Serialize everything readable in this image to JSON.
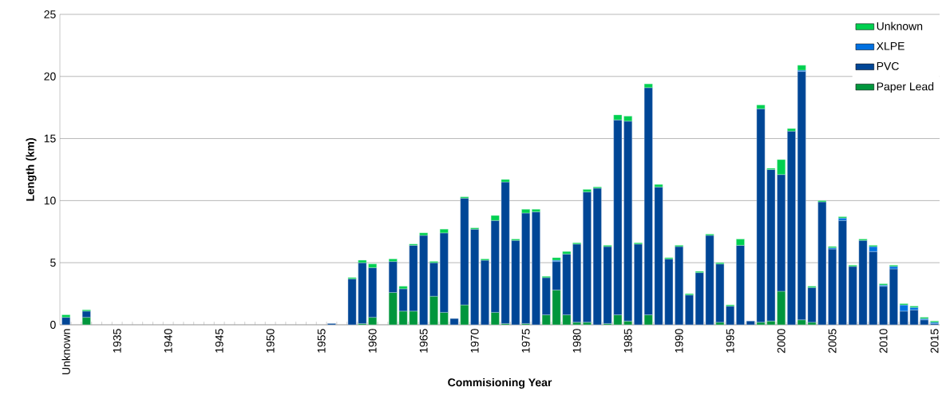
{
  "chart_data": {
    "type": "bar",
    "stacked": true,
    "xlabel": "Commisioning Year",
    "ylabel": "Length (km)",
    "categories": [
      "Unknown",
      null,
      null,
      null,
      null,
      "1935",
      null,
      null,
      null,
      null,
      "1940",
      null,
      null,
      null,
      null,
      "1945",
      null,
      null,
      null,
      null,
      "1950",
      null,
      null,
      null,
      null,
      "1955",
      null,
      null,
      null,
      null,
      "1960",
      null,
      null,
      null,
      null,
      "1965",
      null,
      null,
      null,
      null,
      "1970",
      null,
      null,
      null,
      null,
      "1975",
      null,
      null,
      null,
      null,
      "1980",
      null,
      null,
      null,
      null,
      "1985",
      null,
      null,
      null,
      null,
      "1990",
      null,
      null,
      null,
      null,
      "1995",
      null,
      null,
      null,
      null,
      "2000",
      null,
      null,
      null,
      null,
      "2005",
      null,
      null,
      null,
      null,
      "2010",
      null,
      null,
      null,
      null,
      "2015"
    ],
    "series": [
      {
        "name": "Paper Lead",
        "color": "#00963c",
        "values": [
          null,
          null,
          0.6,
          null,
          null,
          null,
          null,
          null,
          null,
          null,
          null,
          null,
          null,
          null,
          null,
          null,
          null,
          null,
          null,
          null,
          null,
          null,
          null,
          null,
          null,
          null,
          null,
          null,
          null,
          0.1,
          0.6,
          null,
          2.6,
          1.1,
          1.1,
          null,
          2.3,
          1.0,
          null,
          1.6,
          null,
          null,
          1.0,
          0.1,
          null,
          0.1,
          null,
          0.8,
          2.8,
          0.8,
          0.2,
          0.2,
          null,
          0.1,
          0.8,
          0.3,
          null,
          0.8,
          null,
          null,
          null,
          null,
          null,
          null,
          0.2,
          null,
          null,
          null,
          0.2,
          0.3,
          2.7,
          null,
          0.4,
          0.2,
          null,
          null,
          null,
          null,
          null,
          null,
          null,
          null,
          null,
          null,
          null,
          null
        ]
      },
      {
        "name": "PVC",
        "color": "#004696",
        "values": [
          0.6,
          null,
          0.5,
          null,
          null,
          null,
          null,
          null,
          null,
          null,
          null,
          null,
          null,
          null,
          null,
          null,
          null,
          null,
          null,
          null,
          null,
          null,
          null,
          null,
          null,
          null,
          0.1,
          null,
          3.7,
          4.9,
          4.0,
          null,
          2.5,
          1.8,
          5.3,
          7.2,
          2.7,
          6.4,
          0.5,
          8.6,
          7.7,
          5.2,
          7.4,
          11.4,
          6.8,
          8.9,
          9.1,
          3.0,
          2.3,
          4.9,
          6.3,
          10.5,
          11.0,
          6.2,
          15.7,
          16.1,
          6.5,
          18.3,
          11.1,
          5.3,
          6.3,
          2.4,
          4.2,
          7.2,
          4.7,
          1.5,
          6.4,
          0.3,
          17.2,
          12.2,
          9.4,
          15.6,
          20.0,
          2.8,
          9.9,
          6.1,
          8.4,
          4.7,
          6.8,
          5.9,
          3.1,
          4.5,
          1.1,
          1.2,
          0.4,
          0.1
        ]
      },
      {
        "name": "XLPE",
        "color": "#0070e0",
        "values": [
          null,
          null,
          null,
          null,
          null,
          null,
          null,
          null,
          null,
          null,
          null,
          null,
          null,
          null,
          null,
          null,
          null,
          null,
          null,
          null,
          null,
          null,
          null,
          null,
          null,
          null,
          null,
          null,
          null,
          null,
          null,
          null,
          null,
          null,
          null,
          null,
          null,
          null,
          null,
          null,
          null,
          null,
          null,
          null,
          null,
          null,
          null,
          null,
          0.1,
          null,
          null,
          null,
          null,
          null,
          null,
          null,
          null,
          null,
          null,
          null,
          null,
          null,
          null,
          null,
          null,
          null,
          null,
          null,
          null,
          null,
          null,
          null,
          0.1,
          null,
          null,
          0.1,
          0.2,
          null,
          null,
          0.4,
          0.1,
          0.2,
          0.5,
          0.2,
          0.1,
          0.1
        ]
      },
      {
        "name": "Unknown",
        "color": "#00d050",
        "values": [
          0.2,
          null,
          0.1,
          null,
          null,
          null,
          null,
          null,
          null,
          null,
          null,
          null,
          null,
          null,
          null,
          null,
          null,
          null,
          null,
          null,
          null,
          null,
          null,
          null,
          null,
          null,
          null,
          null,
          0.1,
          0.2,
          0.3,
          null,
          0.2,
          0.2,
          0.1,
          0.2,
          0.1,
          0.3,
          null,
          0.1,
          0.1,
          0.1,
          0.4,
          0.2,
          0.1,
          0.3,
          0.2,
          0.1,
          0.2,
          0.2,
          0.1,
          0.2,
          0.1,
          0.1,
          0.4,
          0.4,
          0.1,
          0.3,
          0.2,
          0.1,
          0.1,
          0.1,
          0.1,
          0.1,
          0.1,
          0.1,
          0.5,
          null,
          0.3,
          0.1,
          1.2,
          0.2,
          0.4,
          0.1,
          0.1,
          0.1,
          0.1,
          0.1,
          0.1,
          0.1,
          0.1,
          0.1,
          0.1,
          0.1,
          0.1,
          0.1
        ]
      }
    ],
    "ylim": [
      0,
      25
    ],
    "yticks": [
      0,
      5,
      10,
      15,
      20,
      25
    ],
    "grid": "y",
    "legend": "top right"
  }
}
